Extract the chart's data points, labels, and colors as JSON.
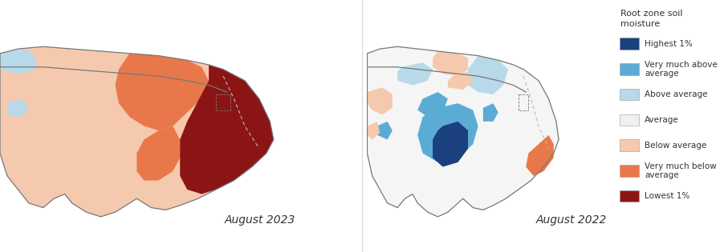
{
  "title_left": "August 2023",
  "title_right": "August 2022",
  "legend_title": "Root zone soil\nmoisture",
  "legend_items": [
    {
      "label": "Highest 1%",
      "color": "#1a4080"
    },
    {
      "label": "Very much above\naverage",
      "color": "#5bacd4"
    },
    {
      "label": "Above average",
      "color": "#b8d9ea"
    },
    {
      "label": "Average",
      "color": "#f0f0f0"
    },
    {
      "label": "Below average",
      "color": "#f5c9ae"
    },
    {
      "label": "Very much below\naverage",
      "color": "#e8784a"
    },
    {
      "label": "Lowest 1%",
      "color": "#8b1515"
    }
  ],
  "colors": {
    "highest": "#1a4080",
    "very_above": "#5bacd4",
    "above": "#b8d9ea",
    "average": "#f5f5f5",
    "below": "#f5c9ae",
    "very_below": "#e8784a",
    "lowest": "#8b1515"
  },
  "text_color": "#333333",
  "border_color": "#777777",
  "font_size_label": 7.5,
  "font_size_title": 10
}
